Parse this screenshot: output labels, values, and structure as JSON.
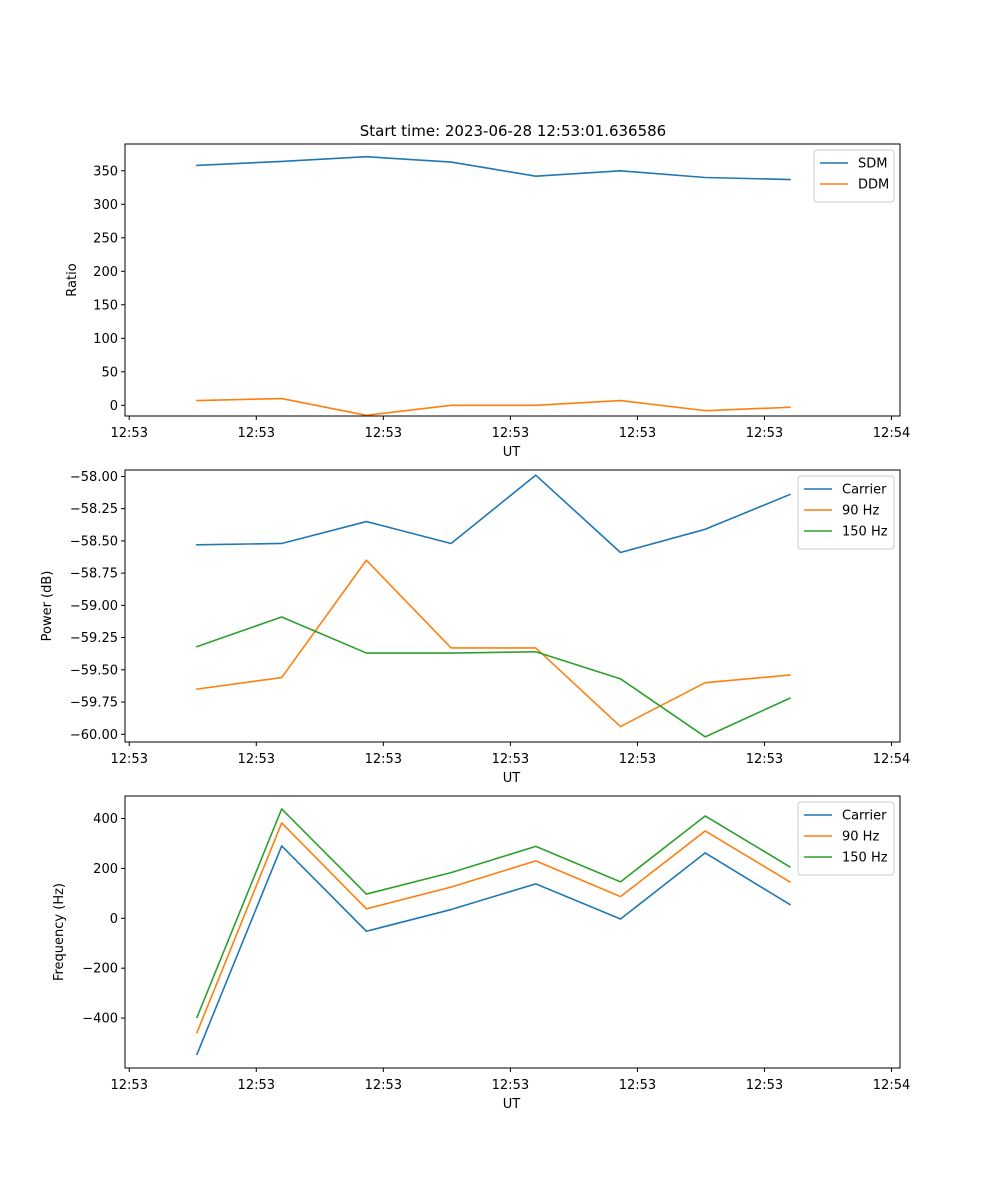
{
  "figure": {
    "title": "Start time: 2023-06-28 12:53:01.636586"
  },
  "colors": {
    "blue": "#1f77b4",
    "orange": "#ff7f0e",
    "green": "#2ca02c"
  },
  "chart_data": [
    {
      "type": "line",
      "title": "Start time: 2023-06-28 12:53:01.636586",
      "xlabel": "UT",
      "ylabel": "Ratio",
      "x_tick_labels": [
        "12:53",
        "12:53",
        "12:53",
        "12:53",
        "12:53",
        "12:53",
        "12:54"
      ],
      "x": [
        1,
        2,
        3,
        4,
        5,
        6,
        7,
        8
      ],
      "xlim": [
        0.15,
        9.3
      ],
      "x_ticks": [
        0.2,
        1.7,
        3.2,
        4.7,
        6.2,
        7.7,
        9.2
      ],
      "ylim": [
        -16,
        390
      ],
      "y_ticks": [
        0,
        50,
        100,
        150,
        200,
        250,
        300,
        350
      ],
      "legend_position": "top-right",
      "series": [
        {
          "name": "SDM",
          "color": "#1f77b4",
          "values": [
            358,
            364,
            371,
            363,
            342,
            350,
            340,
            337
          ]
        },
        {
          "name": "DDM",
          "color": "#ff7f0e",
          "values": [
            7,
            10,
            -15,
            0,
            0,
            7,
            -8,
            -3
          ]
        }
      ]
    },
    {
      "type": "line",
      "xlabel": "UT",
      "ylabel": "Power (dB)",
      "x_tick_labels": [
        "12:53",
        "12:53",
        "12:53",
        "12:53",
        "12:53",
        "12:53",
        "12:54"
      ],
      "x": [
        1,
        2,
        3,
        4,
        5,
        6,
        7,
        8
      ],
      "xlim": [
        0.15,
        9.3
      ],
      "x_ticks": [
        0.2,
        1.7,
        3.2,
        4.7,
        6.2,
        7.7,
        9.2
      ],
      "ylim": [
        -60.06,
        -57.95
      ],
      "y_ticks": [
        -58.0,
        -58.25,
        -58.5,
        -58.75,
        -59.0,
        -59.25,
        -59.5,
        -59.75,
        -60.0
      ],
      "y_tick_labels": [
        "−58.00",
        "−58.25",
        "−58.50",
        "−58.75",
        "−59.00",
        "−59.25",
        "−59.50",
        "−59.75",
        "−60.00"
      ],
      "legend_position": "top-right",
      "series": [
        {
          "name": "Carrier",
          "color": "#1f77b4",
          "values": [
            -58.53,
            -58.52,
            -58.35,
            -58.52,
            -57.99,
            -58.59,
            -58.41,
            -58.14
          ]
        },
        {
          "name": "90 Hz",
          "color": "#ff7f0e",
          "values": [
            -59.65,
            -59.56,
            -58.65,
            -59.33,
            -59.33,
            -59.94,
            -59.6,
            -59.54
          ]
        },
        {
          "name": "150 Hz",
          "color": "#2ca02c",
          "values": [
            -59.32,
            -59.09,
            -59.37,
            -59.37,
            -59.36,
            -59.57,
            -60.02,
            -59.72
          ]
        }
      ]
    },
    {
      "type": "line",
      "xlabel": "UT",
      "ylabel": "Frequency (Hz)",
      "x_tick_labels": [
        "12:53",
        "12:53",
        "12:53",
        "12:53",
        "12:53",
        "12:53",
        "12:54"
      ],
      "x": [
        1,
        2,
        3,
        4,
        5,
        6,
        7,
        8
      ],
      "xlim": [
        0.15,
        9.3
      ],
      "x_ticks": [
        0.2,
        1.7,
        3.2,
        4.7,
        6.2,
        7.7,
        9.2
      ],
      "ylim": [
        -600,
        490
      ],
      "y_ticks": [
        -400,
        -200,
        0,
        200,
        400
      ],
      "y_tick_labels": [
        "−400",
        "−200",
        "0",
        "200",
        "400"
      ],
      "legend_position": "top-right",
      "series": [
        {
          "name": "Carrier",
          "color": "#1f77b4",
          "values": [
            -545,
            290,
            -52,
            35,
            138,
            -3,
            262,
            55
          ]
        },
        {
          "name": "90 Hz",
          "color": "#ff7f0e",
          "values": [
            -458,
            382,
            38,
            125,
            230,
            87,
            350,
            146
          ]
        },
        {
          "name": "150 Hz",
          "color": "#2ca02c",
          "values": [
            -397,
            438,
            97,
            183,
            288,
            146,
            410,
            206
          ]
        }
      ]
    }
  ]
}
